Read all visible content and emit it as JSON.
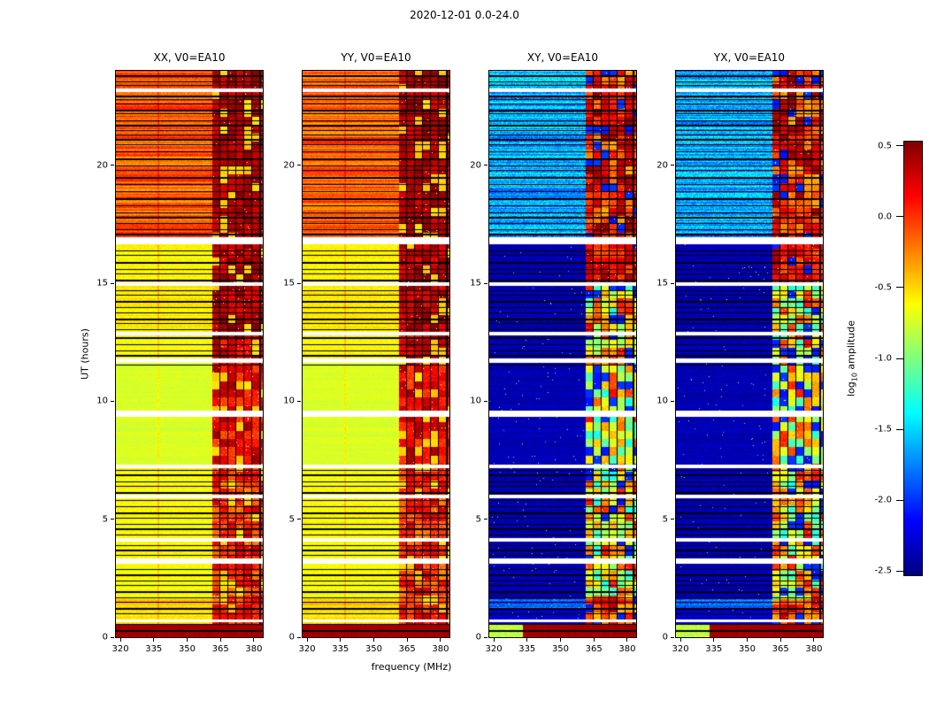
{
  "figure": {
    "title": "2020-12-01 0.0-24.0"
  },
  "axes": {
    "xlabel": "frequency (MHz)",
    "ylabel": "UT (hours)",
    "xticks": [
      "320",
      "335",
      "350",
      "365",
      "380"
    ],
    "xtick_values": [
      320,
      335,
      350,
      365,
      380
    ],
    "yticks": [
      "0",
      "5",
      "10",
      "15",
      "20"
    ],
    "ytick_values": [
      0,
      5,
      10,
      15,
      20
    ]
  },
  "panels": [
    {
      "id": "xx",
      "title": "XX, V0=EA10",
      "kind": "auto",
      "seed": 11
    },
    {
      "id": "yy",
      "title": "YY, V0=EA10",
      "kind": "auto",
      "seed": 12
    },
    {
      "id": "xy",
      "title": "XY, V0=EA10",
      "kind": "cross",
      "seed": 21
    },
    {
      "id": "yx",
      "title": "YX, V0=EA10",
      "kind": "cross",
      "seed": 22
    }
  ],
  "colorbar": {
    "label_pre": "log",
    "label_sub": "10",
    "label_post": " amplitude",
    "tick_labels": [
      "0.5",
      "0.0",
      "-0.5",
      "-1.0",
      "-1.5",
      "-2.0",
      "-2.5"
    ],
    "tick_values": [
      0.5,
      0,
      -0.5,
      -1,
      -1.5,
      -2,
      -2.5
    ]
  },
  "chart_data": {
    "type": "heatmap",
    "title": "2020-12-01 0.0-24.0",
    "xlabel": "frequency (MHz)",
    "ylabel": "UT (hours)",
    "x_range_mhz": [
      318,
      384
    ],
    "y_range_hours": [
      0,
      24
    ],
    "colormap": "jet",
    "colorbar": {
      "label": "log10 amplitude",
      "range": [
        -2.53,
        0.53
      ]
    },
    "panels": [
      "XX, V0=EA10",
      "YY, V0=EA10",
      "XY, V0=EA10",
      "YX, V0=EA10"
    ],
    "features": {
      "bottom_band_hours": [
        0,
        0.52
      ],
      "bottom_band_value": 0.42,
      "rfi_band_mhz": [
        361.2,
        384
      ],
      "rfi_stripe_separators_mhz": [
        361.2,
        364.8,
        368.4,
        372.0,
        375.6,
        379.2,
        382.8
      ],
      "rfi_stripe_width_mhz": 3.6,
      "rfi_time_block_hours": 0.35,
      "rfi_weak_chance": 0.13,
      "rfi_weak_value_auto": -0.55,
      "rfi_weak_value_cross": -2.1,
      "auto_dark_vline_mhz": 337,
      "segments_auto": [
        [
          0,
          0.52,
          0.42,
          0.04,
          0.05
        ],
        [
          0.52,
          1.15,
          -0.55,
          0.06,
          0.08
        ],
        [
          1.15,
          1.62,
          -0.45,
          0.1,
          0.08
        ],
        [
          1.62,
          7.2,
          -0.62,
          0.05,
          0.07
        ],
        [
          7.2,
          11.65,
          -0.73,
          0.04,
          0.06
        ],
        [
          11.65,
          12.9,
          -0.62,
          0.05,
          0.07
        ],
        [
          12.9,
          15.05,
          -0.56,
          0.07,
          0.08
        ],
        [
          15.05,
          16.95,
          -0.6,
          0.06,
          0.08
        ],
        [
          16.95,
          24.01,
          -0.14,
          0.22,
          0.1
        ]
      ],
      "segments_cross": [
        [
          0,
          0.52,
          0.42,
          0.04,
          0.05
        ],
        [
          0.52,
          1.15,
          -2.3,
          0.08,
          0.12
        ],
        [
          1.15,
          1.62,
          -1.8,
          0.15,
          0.15
        ],
        [
          1.62,
          16.95,
          -2.38,
          0.06,
          0.1
        ],
        [
          16.95,
          24.01,
          -1.62,
          0.25,
          0.22
        ]
      ],
      "rfi_levels_auto": [
        [
          0,
          1.62,
          -0.3,
          0.6
        ],
        [
          1.62,
          7.2,
          -0.35,
          0.65
        ],
        [
          7.2,
          11.65,
          -0.15,
          0.6
        ],
        [
          11.65,
          12.9,
          -0.05,
          0.55
        ],
        [
          12.9,
          16.95,
          0.12,
          0.42
        ],
        [
          16.95,
          24.01,
          0.2,
          0.33
        ]
      ],
      "rfi_levels_cross": [
        [
          0,
          1.62,
          -0.55,
          0.95
        ],
        [
          1.62,
          15.0,
          -1.55,
          1.7
        ],
        [
          15.0,
          16.95,
          -0.2,
          0.65
        ],
        [
          16.95,
          24.01,
          -0.5,
          1.0
        ]
      ],
      "flagged_rows_hours": [
        23.8,
        23.55,
        23.4,
        22.95,
        22.8,
        22.6,
        22.35,
        22.2,
        21.9,
        21.7,
        21.5,
        21.3,
        21.1,
        20.9,
        20.6,
        20.3,
        20.0,
        19.8,
        19.5,
        19.2,
        18.9,
        18.6,
        18.3,
        18.0,
        17.8,
        17.55,
        17.3,
        17.1,
        16.4,
        16.2,
        15.9,
        15.6,
        15.4,
        15.15,
        14.7,
        14.5,
        14.25,
        14.0,
        13.75,
        13.5,
        13.3,
        13.05,
        12.7,
        12.4,
        12.15,
        11.95,
        11.55,
        7.1,
        6.9,
        6.6,
        6.4,
        6.15,
        5.8,
        5.55,
        5.3,
        5.05,
        4.8,
        4.6,
        4.35,
        3.9,
        3.7,
        3.5,
        2.9,
        2.65,
        2.4,
        2.2,
        1.95,
        1.7,
        1.5,
        1.25,
        1.0,
        0.55,
        0.3
      ],
      "white_gaps": [
        [
          23.1,
          0.15
        ],
        [
          16.65,
          0.3
        ],
        [
          14.9,
          0.15
        ],
        [
          12.8,
          0.15
        ],
        [
          11.62,
          0.18
        ],
        [
          9.35,
          0.26
        ],
        [
          7.15,
          0.15
        ],
        [
          5.9,
          0.15
        ],
        [
          4.05,
          0.15
        ],
        [
          3.1,
          0.22
        ],
        [
          0.62,
          0.13
        ]
      ]
    }
  }
}
